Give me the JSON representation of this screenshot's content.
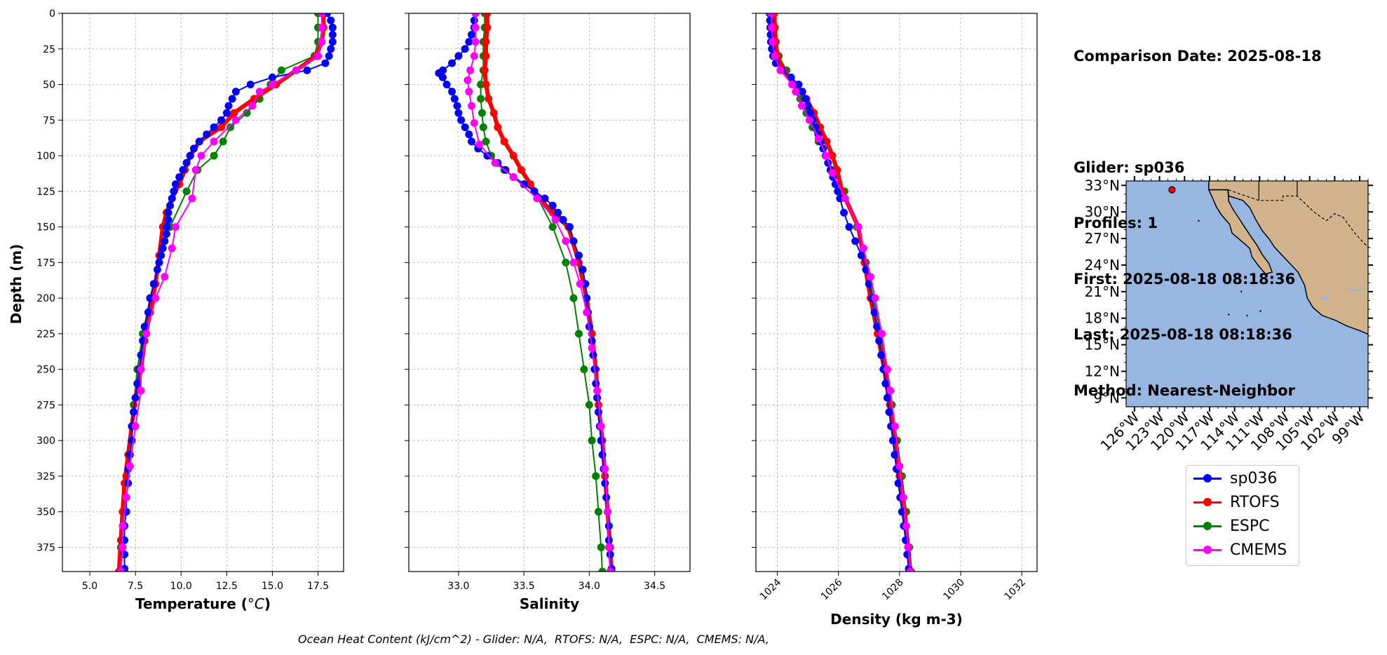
{
  "info": {
    "comparison_date": "Comparison Date: 2025-08-18",
    "glider": "Glider: sp036",
    "profiles": "Profiles: 1",
    "first": "First: 2025-08-18 08:18:36",
    "last": "Last: 2025-08-18 08:18:36",
    "method": "Method: Nearest-Neighbor"
  },
  "footer": "Ocean Heat Content (kJ/cm^2) - Glider: N/A,  RTOFS: N/A,  ESPC: N/A,  CMEMS: N/A,",
  "colors": {
    "sp036": "#0000ff",
    "RTOFS": "#ff0000",
    "ESPC": "#008000",
    "CMEMS": "#ff00ff",
    "ocean": "#97b6e1",
    "land": "#d1b48c"
  },
  "legend": [
    {
      "label": "sp036",
      "color": "#0000ff"
    },
    {
      "label": "RTOFS",
      "color": "#ff0000"
    },
    {
      "label": "ESPC",
      "color": "#008000"
    },
    {
      "label": "CMEMS",
      "color": "#ff00ff"
    }
  ],
  "map": {
    "lat_ticks": [
      "33°N",
      "30°N",
      "27°N",
      "24°N",
      "21°N",
      "18°N",
      "15°N",
      "12°N",
      "9°N"
    ],
    "lon_ticks": [
      "126°W",
      "123°W",
      "120°W",
      "117°W",
      "114°W",
      "111°W",
      "108°W",
      "105°W",
      "102°W",
      "99°W"
    ],
    "lat_values": [
      33,
      30,
      27,
      24,
      21,
      18,
      15,
      12,
      9
    ],
    "lon_values": [
      -126,
      -123,
      -120,
      -117,
      -114,
      -111,
      -108,
      -105,
      -102,
      -99
    ],
    "extent": {
      "lon": [
        -127,
        -98
      ],
      "lat": [
        8,
        33.5
      ]
    },
    "glider_position": {
      "lon": -121.5,
      "lat": 32.5
    }
  },
  "chart_data": [
    {
      "type": "line",
      "title": "",
      "xlabel": "Temperature (°C)",
      "ylabel": "Depth (m)",
      "xlim": [
        3.5,
        18.9
      ],
      "ylim": [
        392,
        0
      ],
      "x_ticks": [
        5.0,
        7.5,
        10.0,
        12.5,
        15.0,
        17.5
      ],
      "x_tick_labels": [
        "5.0",
        "7.5",
        "10.0",
        "12.5",
        "15.0",
        "17.5"
      ],
      "y_ticks": [
        0,
        25,
        50,
        75,
        100,
        125,
        150,
        175,
        200,
        225,
        250,
        275,
        300,
        325,
        350,
        375
      ],
      "y_tick_labels": [
        "0",
        "25",
        "50",
        "75",
        "100",
        "125",
        "150",
        "175",
        "200",
        "225",
        "250",
        "275",
        "300",
        "325",
        "350",
        "375"
      ],
      "grid": true,
      "series": [
        {
          "name": "sp036",
          "depth": [
            0,
            5,
            10,
            15,
            20,
            25,
            30,
            35,
            40,
            45,
            50,
            55,
            60,
            65,
            70,
            75,
            80,
            85,
            90,
            95,
            100,
            105,
            110,
            115,
            120,
            125,
            130,
            135,
            140,
            145,
            150,
            155,
            160,
            165,
            170,
            175,
            180,
            190,
            200,
            210,
            220,
            230,
            240,
            250,
            260,
            270,
            280,
            290,
            300,
            310,
            320,
            330,
            340,
            350,
            360,
            370,
            380,
            390
          ],
          "values": [
            18.0,
            18.2,
            18.3,
            18.3,
            18.3,
            18.2,
            18.1,
            17.9,
            16.9,
            15.0,
            13.8,
            13.0,
            12.8,
            12.6,
            12.5,
            12.2,
            11.8,
            11.4,
            11.0,
            10.7,
            10.5,
            10.3,
            10.1,
            9.9,
            9.7,
            9.6,
            9.5,
            9.4,
            9.3,
            9.3,
            9.2,
            9.2,
            9.1,
            9.0,
            8.9,
            8.8,
            8.7,
            8.5,
            8.3,
            8.2,
            8.0,
            7.9,
            7.8,
            7.7,
            7.6,
            7.5,
            7.4,
            7.3,
            7.3,
            7.2,
            7.1,
            7.1,
            7.0,
            7.0,
            6.9,
            6.9,
            6.9,
            6.9
          ]
        },
        {
          "name": "RTOFS",
          "depth": [
            0,
            10,
            20,
            30,
            40,
            50,
            60,
            70,
            80,
            90,
            100,
            110,
            120,
            130,
            140,
            150,
            170,
            190,
            210,
            230,
            250,
            270,
            290,
            310,
            330,
            350,
            370,
            392
          ],
          "values": [
            17.8,
            17.8,
            17.7,
            17.4,
            16.3,
            15.2,
            14.0,
            12.9,
            12.2,
            11.0,
            10.5,
            10.2,
            9.9,
            9.5,
            9.2,
            9.0,
            8.8,
            8.6,
            8.3,
            8.0,
            7.8,
            7.5,
            7.3,
            7.1,
            6.9,
            6.8,
            6.7,
            6.6
          ]
        },
        {
          "name": "ESPC",
          "depth": [
            0,
            10,
            20,
            30,
            40,
            50,
            60,
            70,
            80,
            90,
            100,
            110,
            125,
            150,
            175,
            200,
            225,
            250,
            275,
            300,
            325,
            350,
            375,
            392
          ],
          "values": [
            17.5,
            17.5,
            17.5,
            17.3,
            15.5,
            14.9,
            14.3,
            13.6,
            12.7,
            12.3,
            11.8,
            10.9,
            10.3,
            9.4,
            8.8,
            8.3,
            7.9,
            7.6,
            7.4,
            7.3,
            7.0,
            6.8,
            6.7,
            6.6
          ]
        },
        {
          "name": "CMEMS",
          "depth": [
            0,
            10,
            20,
            30,
            40,
            50,
            55,
            65,
            75,
            90,
            100,
            110,
            130,
            150,
            165,
            185,
            200,
            225,
            250,
            265,
            290,
            318,
            340,
            360,
            375,
            392
          ],
          "values": [
            17.7,
            17.7,
            17.7,
            17.5,
            16.3,
            15.0,
            14.3,
            13.9,
            13.0,
            11.8,
            11.1,
            10.8,
            10.6,
            9.7,
            9.5,
            9.1,
            8.6,
            8.1,
            7.8,
            7.8,
            7.5,
            7.2,
            7.0,
            6.8,
            6.8,
            6.7
          ]
        }
      ]
    },
    {
      "type": "line",
      "title": "",
      "xlabel": "Salinity",
      "ylabel": "",
      "xlim": [
        32.62,
        34.77
      ],
      "ylim": [
        392,
        0
      ],
      "x_ticks": [
        33.0,
        33.5,
        34.0,
        34.5
      ],
      "x_tick_labels": [
        "33.0",
        "33.5",
        "34.0",
        "34.5"
      ],
      "grid": true,
      "series": [
        {
          "name": "sp036",
          "depth": [
            0,
            5,
            10,
            15,
            20,
            25,
            30,
            35,
            40,
            42,
            45,
            50,
            55,
            60,
            65,
            70,
            75,
            80,
            85,
            90,
            95,
            100,
            105,
            110,
            115,
            120,
            125,
            130,
            135,
            140,
            145,
            150,
            160,
            170,
            180,
            190,
            200,
            210,
            220,
            230,
            240,
            250,
            260,
            270,
            280,
            290,
            300,
            310,
            320,
            330,
            340,
            350,
            360,
            370,
            380,
            390
          ],
          "values": [
            33.13,
            33.12,
            33.12,
            33.1,
            33.08,
            33.05,
            33.0,
            32.95,
            32.88,
            32.85,
            32.88,
            32.91,
            32.95,
            32.97,
            32.99,
            33.0,
            33.02,
            33.05,
            33.08,
            33.1,
            33.15,
            33.22,
            33.3,
            33.36,
            33.42,
            33.5,
            33.58,
            33.66,
            33.72,
            33.76,
            33.8,
            33.85,
            33.88,
            33.92,
            33.95,
            33.97,
            33.98,
            33.99,
            34.0,
            34.02,
            34.03,
            34.04,
            34.05,
            34.06,
            34.07,
            34.08,
            34.09,
            34.1,
            34.11,
            34.12,
            34.13,
            34.14,
            34.15,
            34.15,
            34.16,
            34.17
          ]
        },
        {
          "name": "RTOFS",
          "depth": [
            0,
            10,
            20,
            30,
            40,
            50,
            60,
            70,
            80,
            90,
            100,
            110,
            120,
            130,
            140,
            150,
            175,
            200,
            225,
            250,
            275,
            300,
            325,
            350,
            375,
            392
          ],
          "values": [
            33.22,
            33.22,
            33.21,
            33.21,
            33.2,
            33.21,
            33.23,
            33.27,
            33.3,
            33.35,
            33.42,
            33.48,
            33.55,
            33.62,
            33.72,
            33.84,
            33.92,
            33.98,
            34.02,
            34.05,
            34.07,
            34.1,
            34.12,
            34.14,
            34.16,
            34.17
          ]
        },
        {
          "name": "ESPC",
          "depth": [
            0,
            10,
            20,
            30,
            40,
            50,
            60,
            70,
            80,
            90,
            100,
            110,
            125,
            150,
            175,
            200,
            225,
            250,
            275,
            300,
            325,
            350,
            375,
            392
          ],
          "values": [
            33.2,
            33.2,
            33.19,
            33.19,
            33.19,
            33.17,
            33.17,
            33.18,
            33.19,
            33.21,
            33.25,
            33.35,
            33.58,
            33.72,
            33.82,
            33.88,
            33.92,
            33.96,
            34.0,
            34.02,
            34.05,
            34.07,
            34.09,
            34.1
          ]
        },
        {
          "name": "CMEMS",
          "depth": [
            0,
            10,
            20,
            30,
            40,
            47,
            55,
            65,
            77,
            92,
            105,
            115,
            130,
            145,
            160,
            175,
            190,
            210,
            235,
            265,
            290,
            320,
            350,
            375,
            392
          ],
          "values": [
            33.13,
            33.13,
            33.13,
            33.12,
            33.09,
            33.07,
            33.08,
            33.1,
            33.12,
            33.16,
            33.28,
            33.42,
            33.6,
            33.74,
            33.82,
            33.88,
            33.93,
            33.98,
            34.02,
            34.06,
            34.09,
            34.12,
            34.14,
            34.15,
            34.16
          ]
        }
      ]
    },
    {
      "type": "line",
      "title": "",
      "xlabel": "Density (kg m-3)",
      "ylabel": "",
      "xlim": [
        1023.3,
        1032.5
      ],
      "ylim": [
        392,
        0
      ],
      "x_ticks": [
        1024,
        1026,
        1028,
        1030,
        1032
      ],
      "x_tick_labels": [
        "1024",
        "1026",
        "1028",
        "1030",
        "1032"
      ],
      "grid": true,
      "series": [
        {
          "name": "sp036",
          "depth": [
            0,
            5,
            10,
            15,
            20,
            25,
            30,
            35,
            40,
            45,
            50,
            55,
            60,
            65,
            70,
            75,
            80,
            85,
            90,
            95,
            100,
            105,
            110,
            115,
            120,
            125,
            130,
            140,
            150,
            160,
            170,
            180,
            190,
            200,
            210,
            220,
            230,
            240,
            250,
            260,
            270,
            280,
            290,
            300,
            310,
            320,
            330,
            340,
            350,
            360,
            370,
            380,
            390
          ],
          "values": [
            1023.75,
            1023.76,
            1023.77,
            1023.78,
            1023.79,
            1023.82,
            1023.86,
            1023.95,
            1024.15,
            1024.45,
            1024.7,
            1024.82,
            1024.92,
            1025.0,
            1025.08,
            1025.16,
            1025.25,
            1025.34,
            1025.42,
            1025.5,
            1025.58,
            1025.66,
            1025.74,
            1025.82,
            1025.9,
            1025.98,
            1026.05,
            1026.18,
            1026.35,
            1026.55,
            1026.75,
            1026.9,
            1027.0,
            1027.1,
            1027.18,
            1027.26,
            1027.33,
            1027.4,
            1027.47,
            1027.54,
            1027.6,
            1027.66,
            1027.72,
            1027.78,
            1027.84,
            1027.9,
            1027.96,
            1028.02,
            1028.08,
            1028.14,
            1028.2,
            1028.25,
            1028.3
          ]
        },
        {
          "name": "RTOFS",
          "depth": [
            0,
            10,
            20,
            30,
            40,
            50,
            60,
            70,
            80,
            90,
            100,
            110,
            125,
            150,
            175,
            200,
            225,
            250,
            275,
            300,
            325,
            350,
            375,
            392
          ],
          "values": [
            1023.9,
            1023.92,
            1023.95,
            1024.0,
            1024.2,
            1024.55,
            1024.95,
            1025.2,
            1025.4,
            1025.62,
            1025.8,
            1025.96,
            1026.12,
            1026.65,
            1026.85,
            1027.05,
            1027.28,
            1027.5,
            1027.68,
            1027.85,
            1028.0,
            1028.15,
            1028.28,
            1028.35
          ]
        },
        {
          "name": "ESPC",
          "depth": [
            0,
            10,
            20,
            30,
            40,
            50,
            60,
            70,
            80,
            90,
            100,
            110,
            125,
            150,
            175,
            200,
            225,
            250,
            275,
            300,
            325,
            350,
            375,
            392
          ],
          "values": [
            1023.9,
            1023.92,
            1023.95,
            1024.05,
            1024.3,
            1024.55,
            1024.75,
            1024.95,
            1025.15,
            1025.35,
            1025.6,
            1025.8,
            1026.2,
            1026.6,
            1026.9,
            1027.15,
            1027.38,
            1027.58,
            1027.75,
            1027.92,
            1028.08,
            1028.22,
            1028.32,
            1028.38
          ]
        },
        {
          "name": "CMEMS",
          "depth": [
            0,
            10,
            20,
            30,
            40,
            50,
            55,
            65,
            75,
            88,
            100,
            112,
            130,
            150,
            165,
            185,
            200,
            225,
            250,
            265,
            290,
            318,
            340,
            360,
            375,
            392
          ],
          "values": [
            1023.8,
            1023.82,
            1023.85,
            1023.92,
            1024.1,
            1024.48,
            1024.6,
            1024.8,
            1025.05,
            1025.35,
            1025.6,
            1025.8,
            1026.22,
            1026.65,
            1026.82,
            1027.05,
            1027.2,
            1027.42,
            1027.6,
            1027.7,
            1027.85,
            1028.0,
            1028.12,
            1028.22,
            1028.28,
            1028.35
          ]
        }
      ]
    }
  ]
}
